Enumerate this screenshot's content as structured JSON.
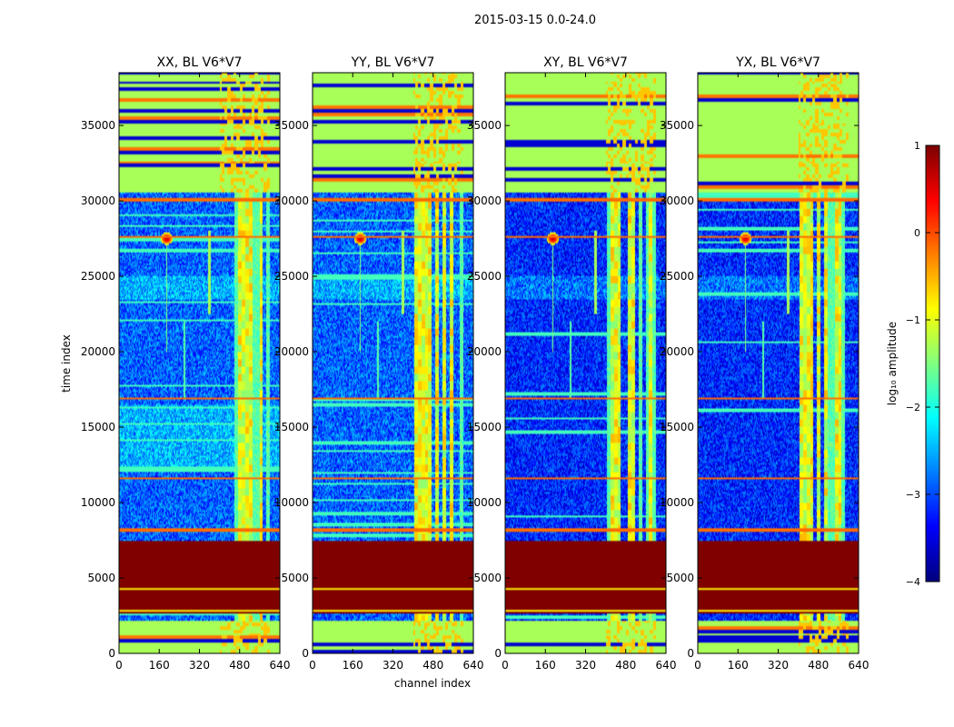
{
  "chart_data": {
    "type": "heatmap",
    "suptitle": "2015-03-15 0.0-24.0",
    "xlabel": "channel index",
    "ylabel": "time index",
    "xlim": [
      0,
      640
    ],
    "ylim": [
      0,
      38500
    ],
    "xticks": [
      0,
      160,
      320,
      480,
      640
    ],
    "yticks": [
      0,
      5000,
      10000,
      15000,
      20000,
      25000,
      30000,
      35000
    ],
    "panels": [
      {
        "title": "XX, BL V6*V7",
        "variant": "XX"
      },
      {
        "title": "YY, BL V6*V7",
        "variant": "YY"
      },
      {
        "title": "XY, BL V6*V7",
        "variant": "XY"
      },
      {
        "title": "YX, BL V6*V7",
        "variant": "YX"
      }
    ],
    "colorbar": {
      "label": "log₁₀ amplitude",
      "range": [
        -4,
        1
      ],
      "ticks": [
        "1",
        "0",
        "−1",
        "−2",
        "−3",
        "−4"
      ],
      "colormap": "jet"
    },
    "features": {
      "bad_block_time": [
        2700,
        7500
      ],
      "bright_rows_time": [
        8200,
        11600,
        16900,
        27600,
        30100,
        32000,
        35200
      ],
      "rfi_channel_range": [
        405,
        600
      ],
      "flagged_time_ranges": [
        [
          0,
          2200
        ],
        [
          30500,
          38500
        ]
      ],
      "spike_channel": 190,
      "spike_time": 27500
    }
  }
}
